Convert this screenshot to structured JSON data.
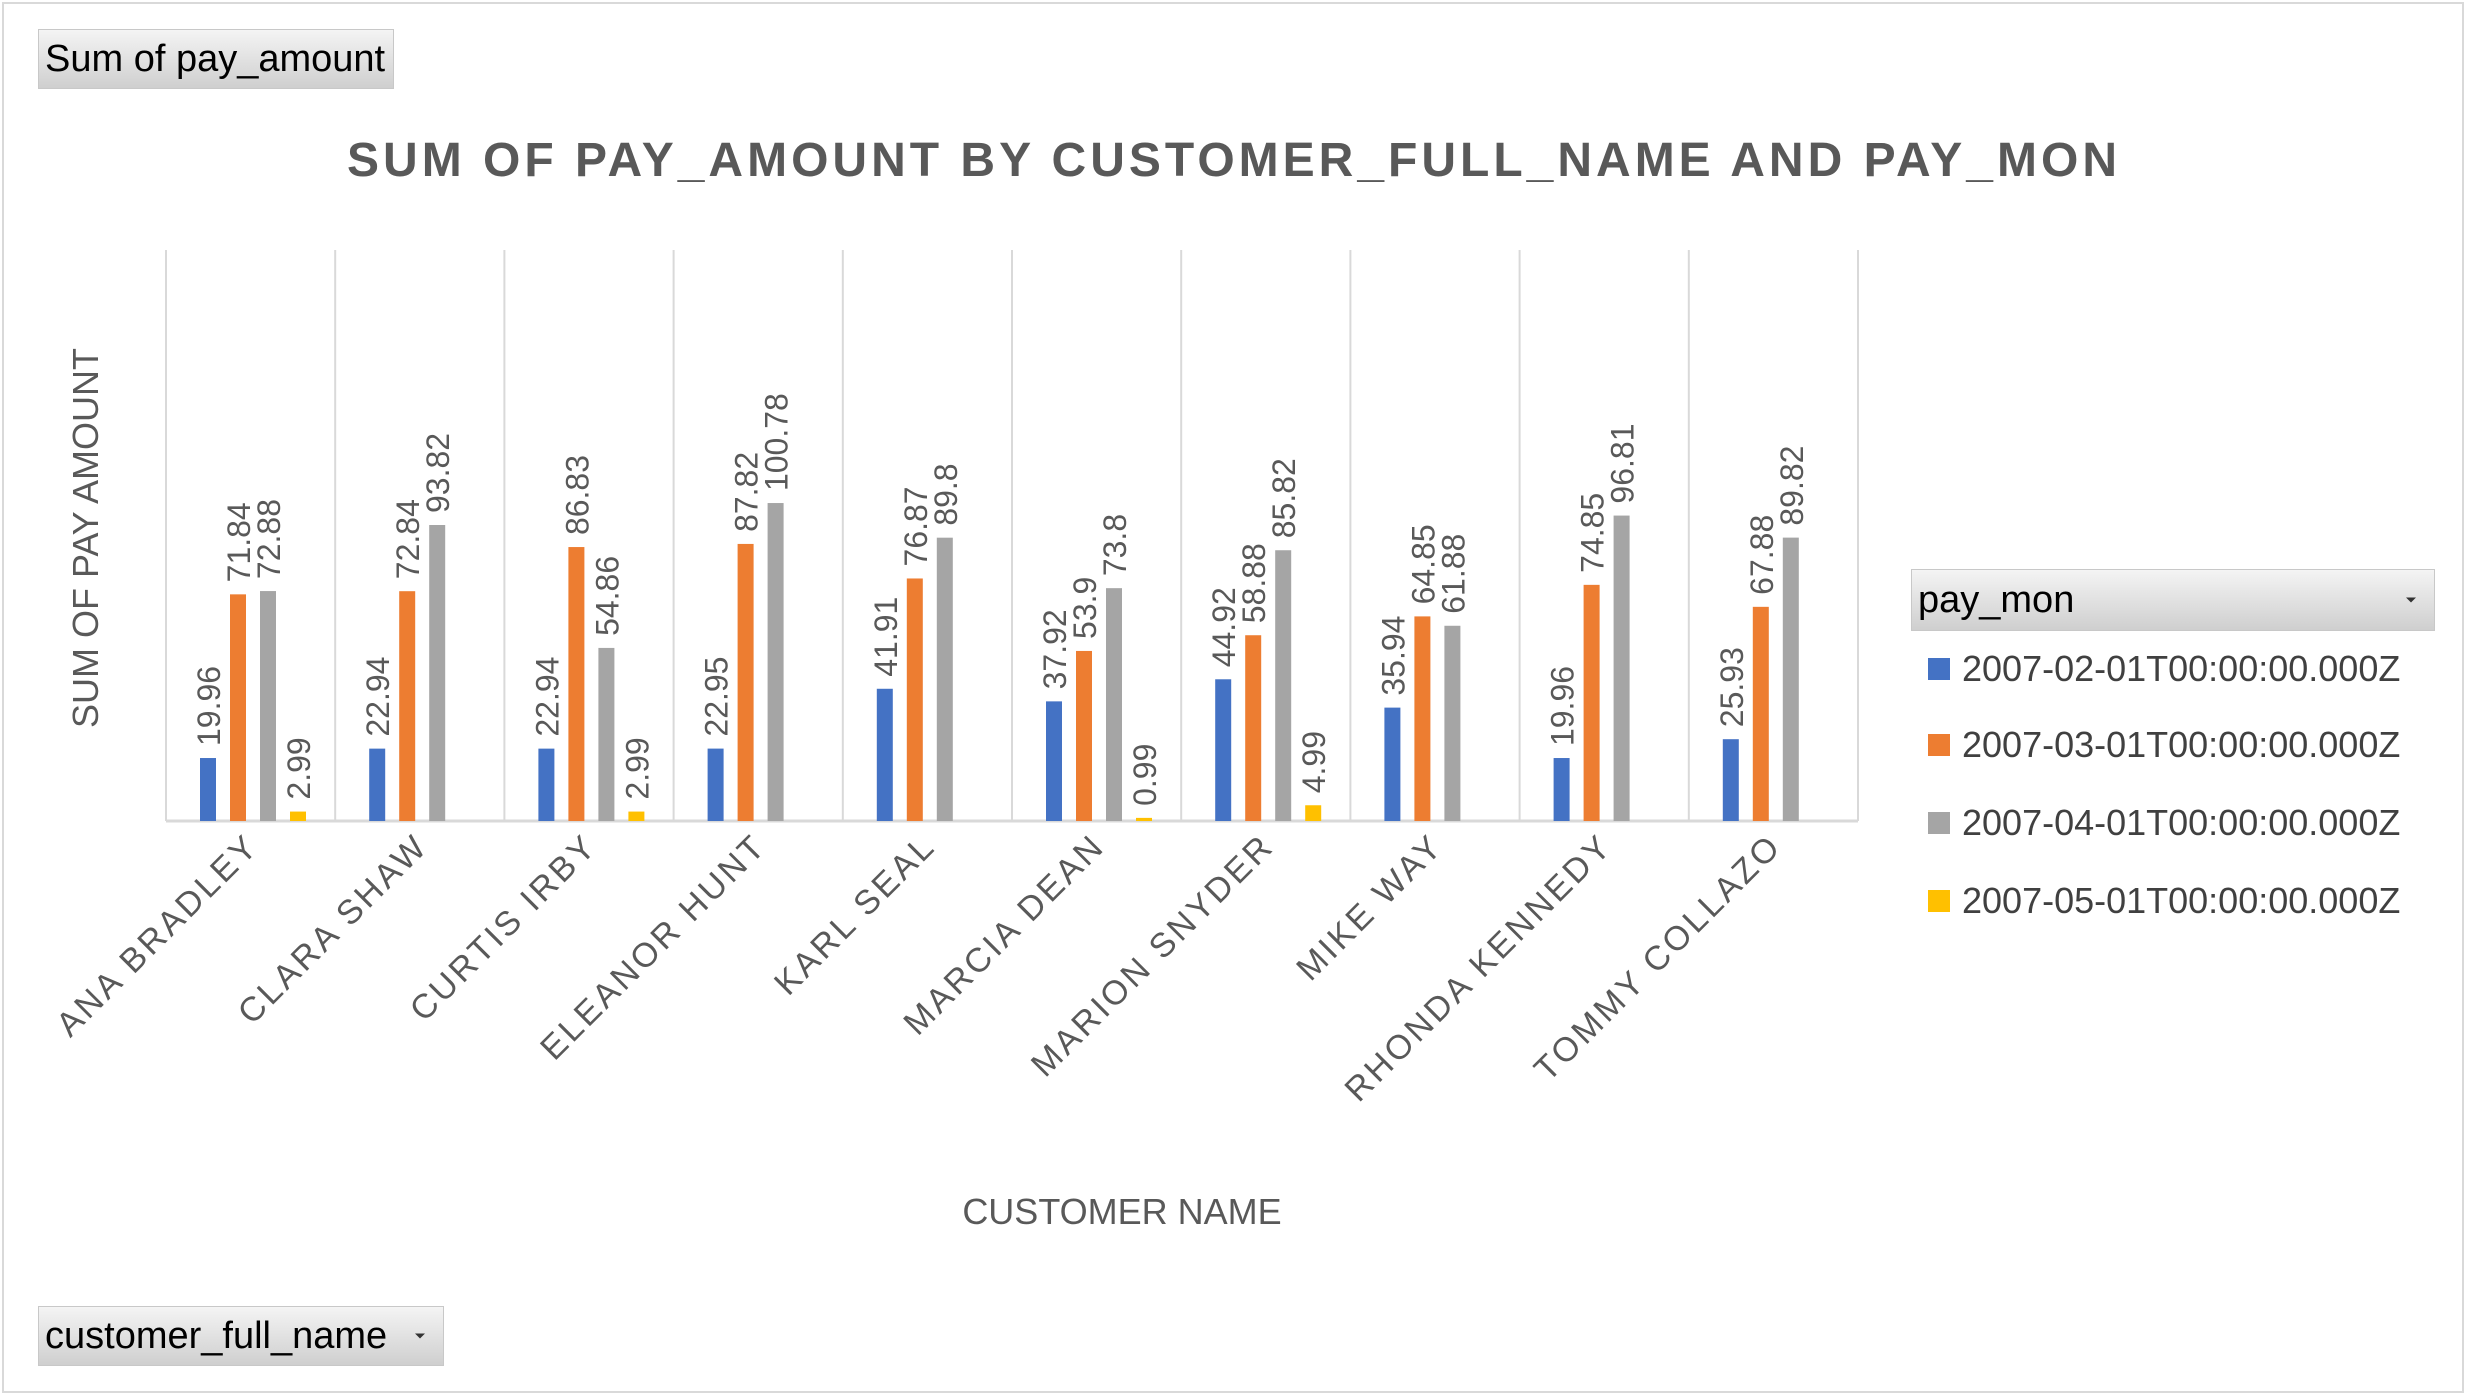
{
  "pivot": {
    "value_field_label": "Sum of pay_amount",
    "axis_field_label": "customer_full_name",
    "legend_field_label": "pay_mon"
  },
  "colors": {
    "series": [
      "#4472C4",
      "#ED7D31",
      "#A5A5A5",
      "#FFC000"
    ],
    "label_text": "#595959",
    "grid": "#d9d9d9"
  },
  "chart_data": {
    "type": "bar",
    "title": "SUM OF PAY_AMOUNT BY CUSTOMER_FULL_NAME AND PAY_MON",
    "xlabel": "CUSTOMER NAME",
    "ylabel": "SUM OF PAY AMOUNT",
    "ylim": [
      0,
      115
    ],
    "grid": "vertical category separators only",
    "legend_position": "right",
    "categories": [
      "ANA BRADLEY",
      "CLARA SHAW",
      "CURTIS IRBY",
      "ELEANOR HUNT",
      "KARL SEAL",
      "MARCIA DEAN",
      "MARION SNYDER",
      "MIKE WAY",
      "RHONDA KENNEDY",
      "TOMMY COLLAZO"
    ],
    "series": [
      {
        "name": "2007-02-01T00:00:00.000Z",
        "values": [
          19.96,
          22.94,
          22.94,
          22.95,
          41.91,
          37.92,
          44.92,
          35.94,
          19.96,
          25.93
        ]
      },
      {
        "name": "2007-03-01T00:00:00.000Z",
        "values": [
          71.84,
          72.84,
          86.83,
          87.82,
          76.87,
          53.9,
          58.88,
          64.85,
          74.85,
          67.88
        ]
      },
      {
        "name": "2007-04-01T00:00:00.000Z",
        "values": [
          72.88,
          93.82,
          54.86,
          100.78,
          89.8,
          73.8,
          85.82,
          61.88,
          96.81,
          89.82
        ]
      },
      {
        "name": "2007-05-01T00:00:00.000Z",
        "values": [
          2.99,
          null,
          2.99,
          null,
          null,
          0.99,
          4.99,
          null,
          null,
          null
        ]
      }
    ]
  }
}
